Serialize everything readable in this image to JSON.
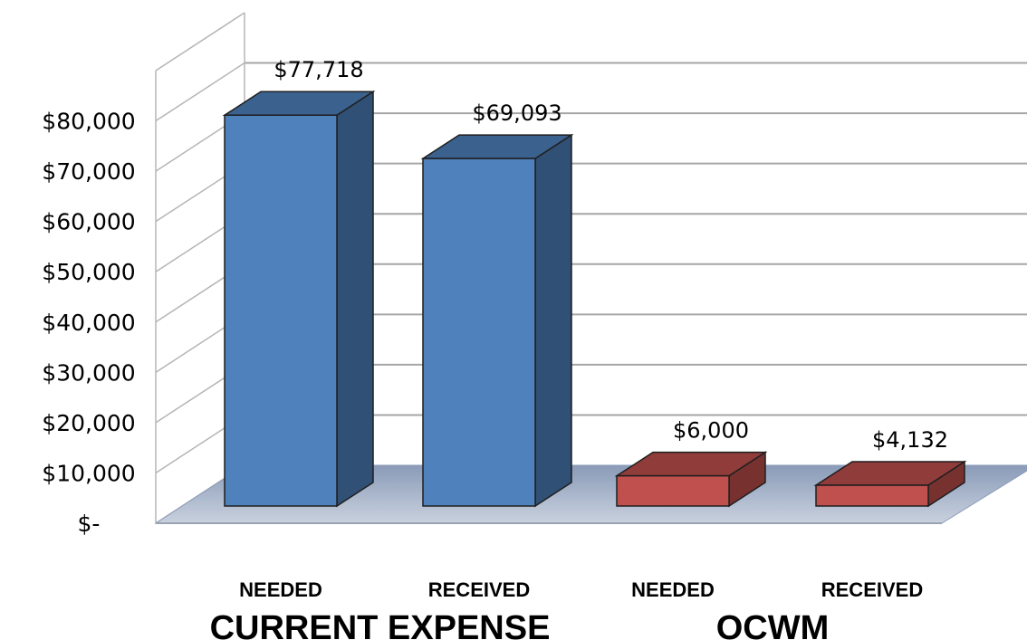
{
  "chart_data": {
    "type": "bar",
    "style": "3d-column",
    "categories": [
      "NEEDED",
      "RECEIVED",
      "NEEDED",
      "RECEIVED"
    ],
    "groups": [
      {
        "label": "CURRENT EXPENSE",
        "categories": [
          0,
          1
        ]
      },
      {
        "label": "OCWM",
        "categories": [
          2,
          3
        ]
      }
    ],
    "values": [
      77718,
      69093,
      6000,
      4132
    ],
    "data_labels": [
      "$77,718",
      "$69,093",
      "$6,000",
      "$4,132"
    ],
    "bar_colors": [
      "#4F81BD",
      "#4F81BD",
      "#C0504D",
      "#C0504D"
    ],
    "y_ticks": [
      {
        "value": 0,
        "label": "$-"
      },
      {
        "value": 10000,
        "label": "$10,000"
      },
      {
        "value": 20000,
        "label": "$20,000"
      },
      {
        "value": 30000,
        "label": "$30,000"
      },
      {
        "value": 40000,
        "label": "$40,000"
      },
      {
        "value": 50000,
        "label": "$50,000"
      },
      {
        "value": 60000,
        "label": "$60,000"
      },
      {
        "value": 70000,
        "label": "$70,000"
      },
      {
        "value": 80000,
        "label": "$80,000"
      }
    ],
    "ylim": [
      0,
      90000
    ],
    "grid": true,
    "legend": "none"
  }
}
